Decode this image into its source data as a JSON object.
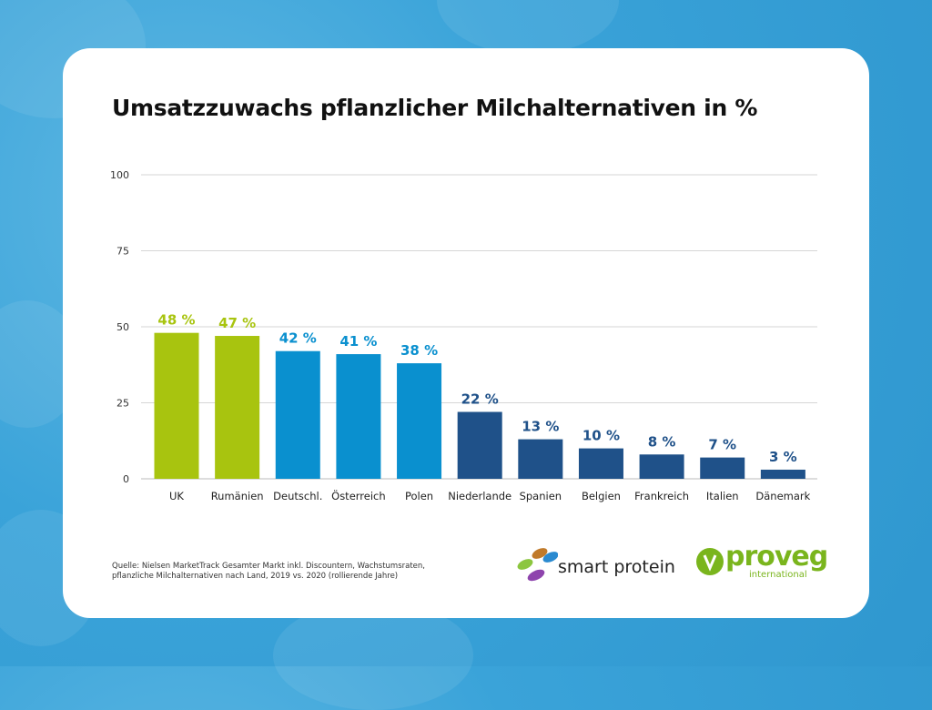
{
  "chart_data": {
    "type": "bar",
    "title": "Umsatzzuwachs pflanzlicher Milchalternativen in %",
    "xlabel": "",
    "ylabel": "",
    "ylim": [
      0,
      100
    ],
    "yticks": [
      0,
      25,
      50,
      75,
      100
    ],
    "grid": true,
    "categories": [
      "UK",
      "Rumänien",
      "Deutschl.",
      "Österreich",
      "Polen",
      "Niederlande",
      "Spanien",
      "Belgien",
      "Frankreich",
      "Italien",
      "Dänemark"
    ],
    "values": [
      48,
      47,
      42,
      41,
      38,
      22,
      13,
      10,
      8,
      7,
      3
    ],
    "data_labels": [
      "48 %",
      "47 %",
      "42 %",
      "41 %",
      "38 %",
      "22 %",
      "13 %",
      "10 %",
      "8 %",
      "7 %",
      "3 %"
    ],
    "bar_colors": [
      "#a8c40f",
      "#a8c40f",
      "#0a90cf",
      "#0a90cf",
      "#0a90cf",
      "#1f5189",
      "#1f5189",
      "#1f5189",
      "#1f5189",
      "#1f5189",
      "#1f5189"
    ]
  },
  "source_note": "Quelle: Nielsen MarketTrack Gesamter Markt inkl. Discountern, Wachstumsraten, pflanzliche Milchalternativen nach Land, 2019 vs. 2020 (rollierende Jahre)",
  "logos": {
    "smart_protein": "smart protein",
    "proveg": "proveg",
    "proveg_sub": "international"
  },
  "colors": {
    "background": "#3aa3d9",
    "green": "#a8c40f",
    "light_blue": "#0a90cf",
    "dark_blue": "#1f5189",
    "proveg_green": "#7ab51d"
  }
}
